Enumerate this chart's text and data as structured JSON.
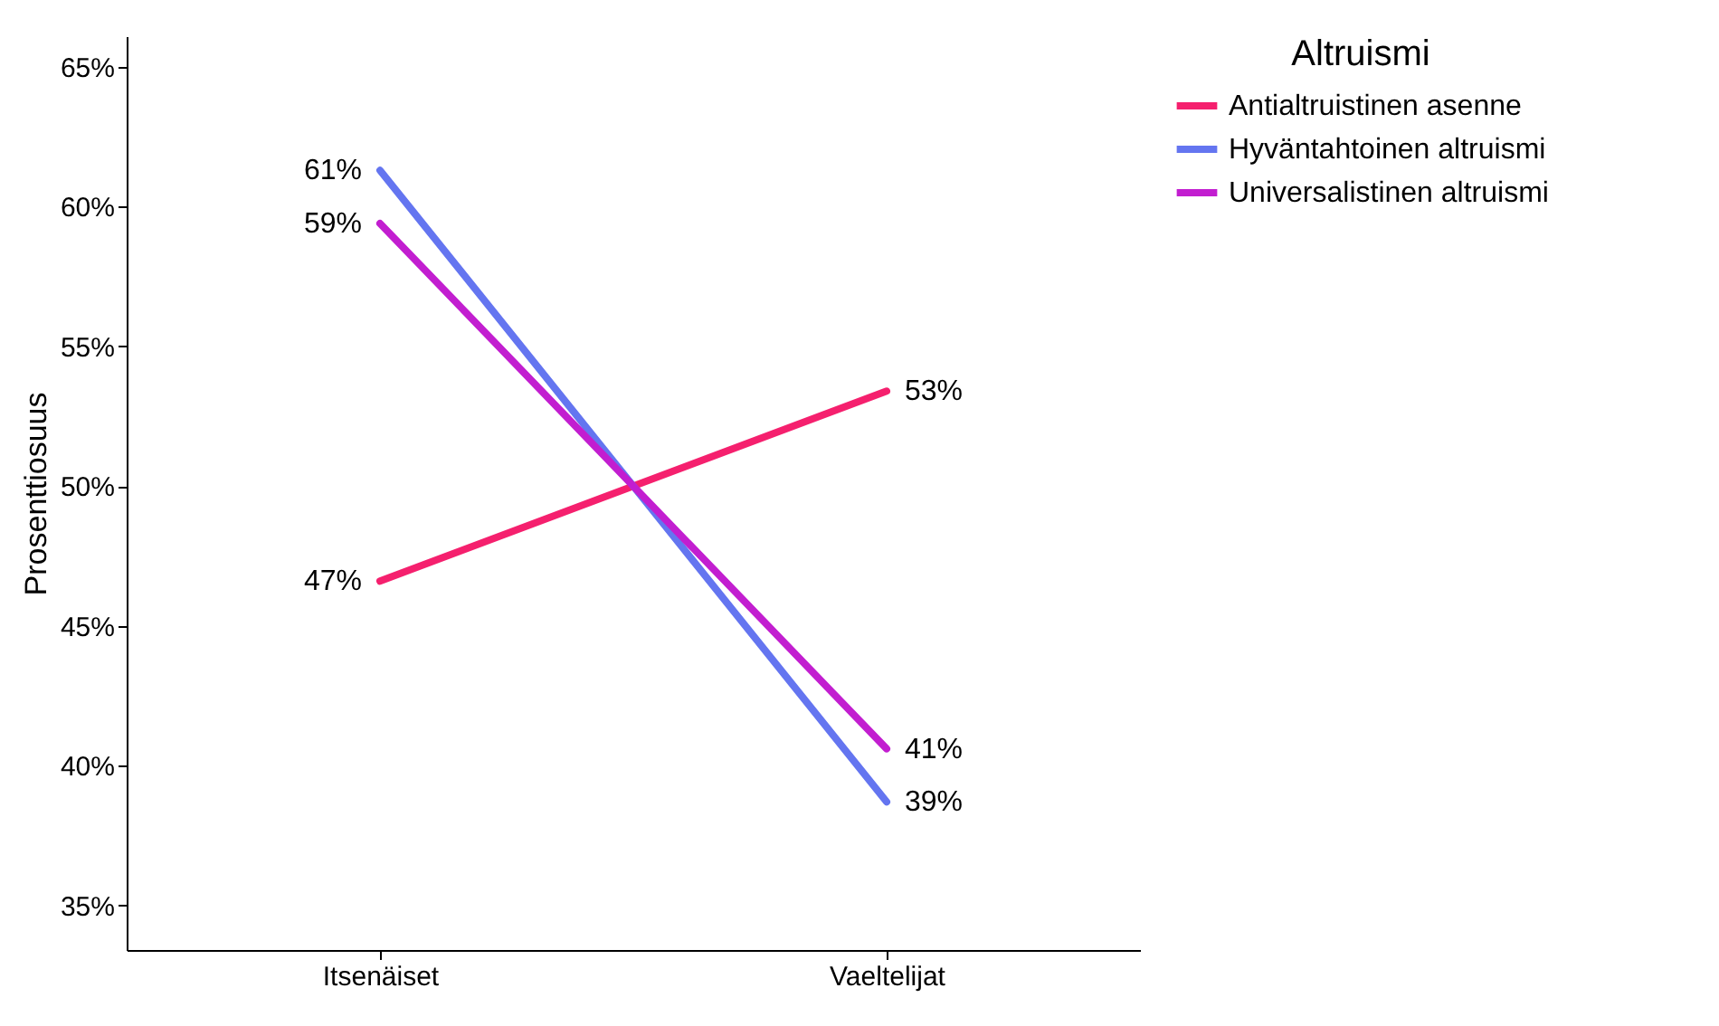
{
  "chart_data": {
    "type": "line",
    "ylabel": "Prosenttiosuus",
    "legend_title": "Altruismi",
    "legend": "top right",
    "categories": [
      "Itsenäiset",
      "Vaeltelijat"
    ],
    "series": [
      {
        "name": "Antialtruistinen asenne",
        "color": "#f5206e",
        "values": [
          46.6,
          53.4
        ],
        "value_labels": [
          "47%",
          "53%"
        ]
      },
      {
        "name": "Hyväntahtoinen altruismi",
        "color": "#6475f0",
        "values": [
          61.3,
          38.7
        ],
        "value_labels": [
          "61%",
          "39%"
        ]
      },
      {
        "name": "Universalistinen altruismi",
        "color": "#c21ed0",
        "values": [
          59.4,
          40.6
        ],
        "value_labels": [
          "59%",
          "41%"
        ]
      }
    ],
    "ylim": [
      33.4,
      66.1
    ],
    "yticks": [
      {
        "value": 35,
        "label": "35%"
      },
      {
        "value": 40,
        "label": "40%"
      },
      {
        "value": 45,
        "label": "45%"
      },
      {
        "value": 50,
        "label": "50%"
      },
      {
        "value": 55,
        "label": "55%"
      },
      {
        "value": 60,
        "label": "60%"
      },
      {
        "value": 65,
        "label": "65%"
      }
    ],
    "grid": false
  }
}
